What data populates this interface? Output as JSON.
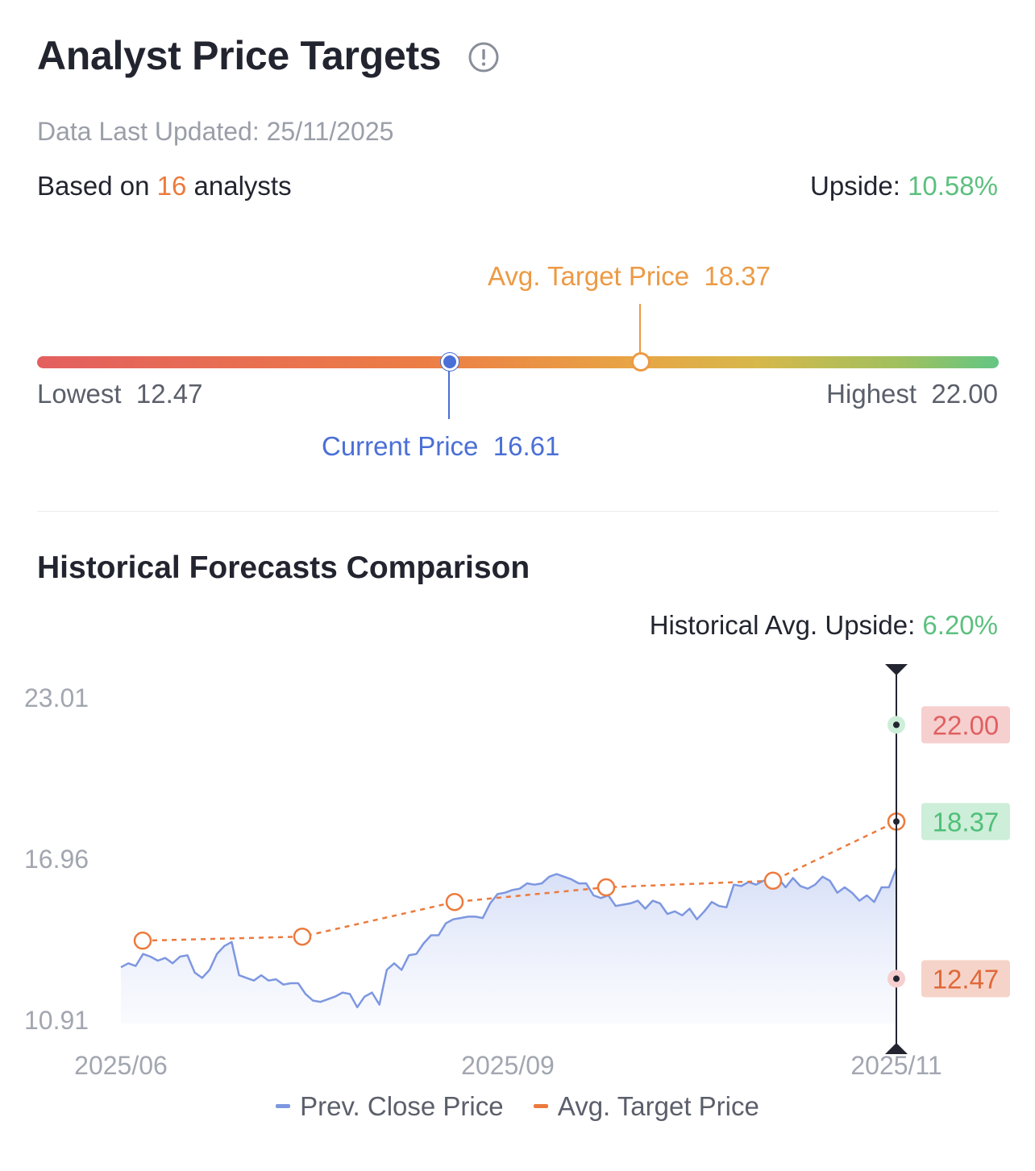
{
  "header": {
    "title": "Analyst Price Targets",
    "info_icon": "info-icon",
    "updated": "Data Last Updated: 25/11/2025",
    "based_prefix": "Based on ",
    "analyst_count": "16",
    "based_suffix": " analysts",
    "upside_label": "Upside: ",
    "upside_value": "10.58%"
  },
  "range": {
    "lowest_label": "Lowest",
    "lowest_value": "12.47",
    "highest_label": "Highest",
    "highest_value": "22.00",
    "current_label": "Current Price",
    "current_value": "16.61",
    "avg_label": "Avg. Target Price",
    "avg_value": "18.37",
    "current": 16.61,
    "avg": 18.37,
    "low": 12.47,
    "high": 22.0
  },
  "history": {
    "title": "Historical Forecasts Comparison",
    "upside_label": "Historical Avg. Upside: ",
    "upside_value": "6.20%"
  },
  "colors": {
    "close_line": "#7d97e0",
    "avg_line": "#ec7a3d",
    "high_badge_bg": "#f6cfcf",
    "high_badge_text": "#e06060",
    "avg_badge_bg": "#cdeed8",
    "avg_badge_text": "#4fbf78",
    "low_badge_bg": "#f6d3c8",
    "low_badge_text": "#e0683a"
  },
  "chart_data": {
    "type": "line",
    "x_ticks": [
      "2025/06",
      "2025/09",
      "2025/11"
    ],
    "y_ticks": [
      23.01,
      16.96,
      10.91
    ],
    "ylim": [
      10.91,
      23.01
    ],
    "legend_position": "bottom",
    "grid": false,
    "series": [
      {
        "name": "Prev. Close Price",
        "values": [
          12.9,
          13.05,
          12.95,
          13.4,
          13.3,
          13.15,
          13.25,
          13.05,
          13.3,
          13.35,
          12.7,
          12.5,
          12.8,
          13.4,
          13.7,
          13.85,
          12.6,
          12.5,
          12.4,
          12.6,
          12.4,
          12.45,
          12.25,
          12.3,
          12.3,
          11.9,
          11.65,
          11.6,
          11.7,
          11.8,
          11.95,
          11.9,
          11.4,
          11.8,
          11.95,
          11.5,
          12.8,
          13.05,
          12.8,
          13.35,
          13.4,
          13.8,
          14.1,
          14.1,
          14.55,
          14.7,
          14.75,
          14.8,
          14.8,
          14.75,
          15.3,
          15.65,
          15.7,
          15.8,
          15.85,
          16.05,
          16.0,
          16.05,
          16.3,
          16.4,
          16.3,
          16.2,
          16.05,
          16.05,
          15.6,
          15.5,
          15.6,
          15.2,
          15.25,
          15.3,
          15.4,
          15.1,
          15.4,
          15.3,
          14.9,
          15.0,
          14.85,
          15.1,
          14.7,
          15.0,
          15.35,
          15.2,
          15.15,
          16.0,
          15.95,
          16.1,
          16.0,
          16.15,
          16.15,
          16.25,
          15.9,
          16.25,
          15.95,
          15.85,
          16.0,
          16.3,
          16.15,
          15.7,
          15.9,
          15.7,
          15.4,
          15.6,
          15.35,
          15.9,
          15.9,
          16.61
        ]
      },
      {
        "name": "Avg. Target Price",
        "values": [
          13.9,
          14.05,
          15.35,
          15.9,
          16.15,
          18.37
        ]
      }
    ],
    "annotations": {
      "high": "22.00",
      "avg": "18.37",
      "low": "12.47",
      "high_value": 22.0,
      "avg_value": 18.37,
      "low_value": 12.47
    }
  }
}
